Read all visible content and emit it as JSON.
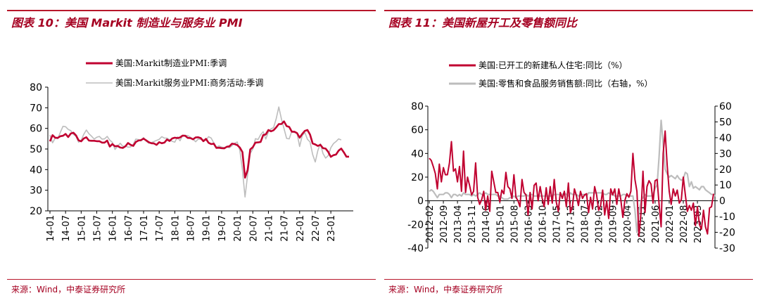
{
  "left": {
    "title": "图表 10：美国 Markit 制造业与服务业 PMI",
    "source": "来源：Wind，中泰证券研究所",
    "chart_data": {
      "type": "line",
      "y_ticks": [
        "80",
        "70",
        "60",
        "50",
        "40",
        "30",
        "20"
      ],
      "ylim": [
        20,
        80
      ],
      "x_ticks": [
        "14-01",
        "14-07",
        "15-01",
        "15-07",
        "16-01",
        "16-07",
        "17-01",
        "17-07",
        "18-01",
        "18-07",
        "19-01",
        "19-07",
        "20-01",
        "20-07",
        "21-01",
        "21-07",
        "22-01",
        "22-07",
        "23-01"
      ],
      "series": [
        {
          "name": "美国:Markit制造业PMI:季调",
          "color": "#c00030",
          "values": [
            53.7,
            56.7,
            55.5,
            55.4,
            56.2,
            56.4,
            57.3,
            55.8,
            57.5,
            57.9,
            56.6,
            54.2,
            53.7,
            55.1,
            55.7,
            54.1,
            54.0,
            54.0,
            53.8,
            53.8,
            53.1,
            53.1,
            54.1,
            51.2,
            52.4,
            51.3,
            51.5,
            50.7,
            50.5,
            51.3,
            52.9,
            52.0,
            51.5,
            53.4,
            54.1,
            54.3,
            55.0,
            54.2,
            53.3,
            52.8,
            52.7,
            52.0,
            53.3,
            52.8,
            53.1,
            54.6,
            53.9,
            55.1,
            55.5,
            55.3,
            55.6,
            56.5,
            56.4,
            55.4,
            55.3,
            54.7,
            55.6,
            55.7,
            55.3,
            53.8,
            54.9,
            53.0,
            52.4,
            52.6,
            50.5,
            50.6,
            50.4,
            50.3,
            51.1,
            51.3,
            52.6,
            52.4,
            51.9,
            50.7,
            48.5,
            36.1,
            39.8,
            49.8,
            50.9,
            53.1,
            53.2,
            53.4,
            56.7,
            57.1,
            59.2,
            58.6,
            59.1,
            60.5,
            62.1,
            62.1,
            63.4,
            61.1,
            60.7,
            58.4,
            58.4,
            57.7,
            55.5,
            57.3,
            58.8,
            59.2,
            57.0,
            52.7,
            52.2,
            51.5,
            52.0,
            50.4,
            50.2,
            48.6,
            46.2,
            47.0,
            47.3,
            49.2,
            50.2,
            48.4,
            46.3,
            46.3
          ]
        },
        {
          "name": "美国:Markit服务业PMI:商务活动:季调",
          "color": "#bdbdbd",
          "values": [
            56.7,
            53.0,
            55.3,
            55.0,
            58.1,
            61.0,
            60.8,
            59.5,
            58.9,
            57.1,
            56.2,
            53.3,
            54.2,
            57.1,
            59.2,
            57.4,
            56.2,
            54.8,
            55.7,
            56.1,
            54.8,
            54.9,
            56.1,
            54.3,
            53.2,
            49.8,
            51.3,
            52.8,
            51.3,
            51.4,
            50.9,
            51.0,
            52.3,
            54.8,
            54.6,
            53.9,
            55.6,
            53.8,
            52.8,
            53.1,
            53.6,
            54.2,
            54.7,
            56.0,
            55.3,
            55.3,
            54.5,
            53.7,
            53.3,
            55.9,
            54.0,
            56.5,
            56.6,
            56.5,
            55.7,
            54.8,
            53.5,
            54.8,
            54.7,
            54.4,
            54.2,
            56.0,
            55.3,
            53.0,
            50.9,
            51.5,
            50.9,
            50.7,
            51.0,
            50.6,
            51.6,
            52.8,
            53.4,
            49.4,
            39.8,
            26.7,
            37.5,
            47.9,
            50.0,
            55.0,
            54.6,
            56.9,
            58.4,
            54.8,
            58.3,
            59.8,
            60.4,
            64.7,
            70.4,
            64.6,
            59.9,
            55.1,
            54.9,
            58.7,
            58.0,
            57.6,
            51.2,
            56.5,
            58.0,
            54.7,
            53.4,
            47.3,
            43.7,
            49.3,
            52.6,
            47.8,
            45.6,
            46.8,
            50.6,
            52.6,
            53.6,
            54.9,
            54.4
          ]
        }
      ]
    }
  },
  "right": {
    "title": "图表 11：美国新屋开工及零售额同比",
    "source": "来源：Wind，中泰证券研究所",
    "chart_data": {
      "type": "line",
      "y_left_ticks": [
        "80",
        "60",
        "40",
        "20",
        "0",
        "-20",
        "-40"
      ],
      "y_left_lim": [
        -40,
        80
      ],
      "y_right_ticks": [
        "60",
        "50",
        "40",
        "30",
        "20",
        "10",
        "0",
        "-10",
        "-20",
        "-30"
      ],
      "y_right_lim": [
        -30,
        60
      ],
      "x_ticks": [
        "2012-02",
        "2012-09",
        "2013-04",
        "2013-11",
        "2014-06",
        "2015-01",
        "2015-08",
        "2016-03",
        "2016-10",
        "2017-05",
        "2017-12",
        "2018-07",
        "2019-02",
        "2019-09",
        "2020-04",
        "2020-11",
        "2021-06",
        "2022-01",
        "2022-08",
        "2023-03"
      ],
      "series": [
        {
          "name": "美国:已开工的新建私人住宅:同比（%）",
          "color": "#c00030",
          "axis": "left",
          "values": [
            36,
            34,
            29,
            23,
            10,
            31,
            16,
            28,
            22,
            22,
            32,
            50,
            25,
            27,
            16,
            29,
            8,
            42,
            7,
            20,
            13,
            5,
            8,
            32,
            3,
            -3,
            1,
            8,
            -8,
            4,
            -9,
            25,
            16,
            7,
            7,
            -1,
            9,
            6,
            24,
            12,
            10,
            2,
            22,
            3,
            0,
            -5,
            18,
            7,
            5,
            -12,
            7,
            -7,
            13,
            15,
            0,
            12,
            2,
            -5,
            11,
            -3,
            12,
            -2,
            18,
            -1,
            -9,
            7,
            2,
            8,
            -5,
            15,
            -10,
            -5,
            10,
            4,
            -4,
            8,
            2,
            5,
            6,
            -10,
            3,
            -7,
            12,
            5,
            -8,
            -4,
            9,
            -12,
            0,
            -15,
            10,
            5,
            10,
            -3,
            10,
            1,
            -14,
            0,
            6,
            3,
            8,
            40,
            18,
            8,
            -30,
            -10,
            25,
            -10,
            12,
            17,
            14,
            -2,
            17,
            18,
            -3,
            -22,
            40,
            59,
            30,
            8,
            -3,
            10,
            4,
            9,
            -2,
            1,
            20,
            5,
            -9,
            -4,
            -8,
            -2,
            -21,
            -5,
            -20,
            -24,
            -8,
            -22,
            -28,
            -6,
            -5,
            6
          ]
        },
        {
          "name": "美国:零售和食品服务销售额:同比（右轴，%）",
          "color": "#bdbdbd",
          "axis": "right",
          "values": [
            6,
            7,
            6,
            4,
            2,
            4,
            4,
            4,
            5,
            5,
            4,
            2,
            4,
            4,
            3,
            4,
            3,
            5,
            4,
            4,
            4,
            3,
            4,
            3,
            4,
            5,
            4,
            4,
            5,
            4,
            4,
            4,
            4,
            4,
            3,
            3,
            2,
            1,
            1,
            1,
            2,
            2,
            3,
            2,
            3,
            3,
            3,
            3,
            4,
            3,
            4,
            4,
            3,
            3,
            3,
            3,
            3,
            3,
            3,
            3,
            3,
            3,
            4,
            4,
            4,
            4,
            4,
            5,
            4,
            3,
            5,
            4,
            4,
            4,
            3,
            4,
            4,
            4,
            3,
            5,
            5,
            5,
            5,
            5,
            5,
            5,
            5,
            4,
            4,
            5,
            4,
            4,
            3,
            3,
            3,
            3,
            4,
            4,
            3,
            3,
            3,
            3,
            -6,
            -20,
            -7,
            0,
            2,
            4,
            3,
            3,
            3,
            4,
            8,
            10,
            28,
            51,
            36,
            20,
            17,
            15,
            16,
            15,
            14,
            16,
            14,
            13,
            14,
            18,
            17,
            9,
            12,
            8,
            9,
            8,
            7,
            9,
            9,
            7,
            6,
            5,
            4,
            4,
            3
          ]
        }
      ]
    }
  }
}
